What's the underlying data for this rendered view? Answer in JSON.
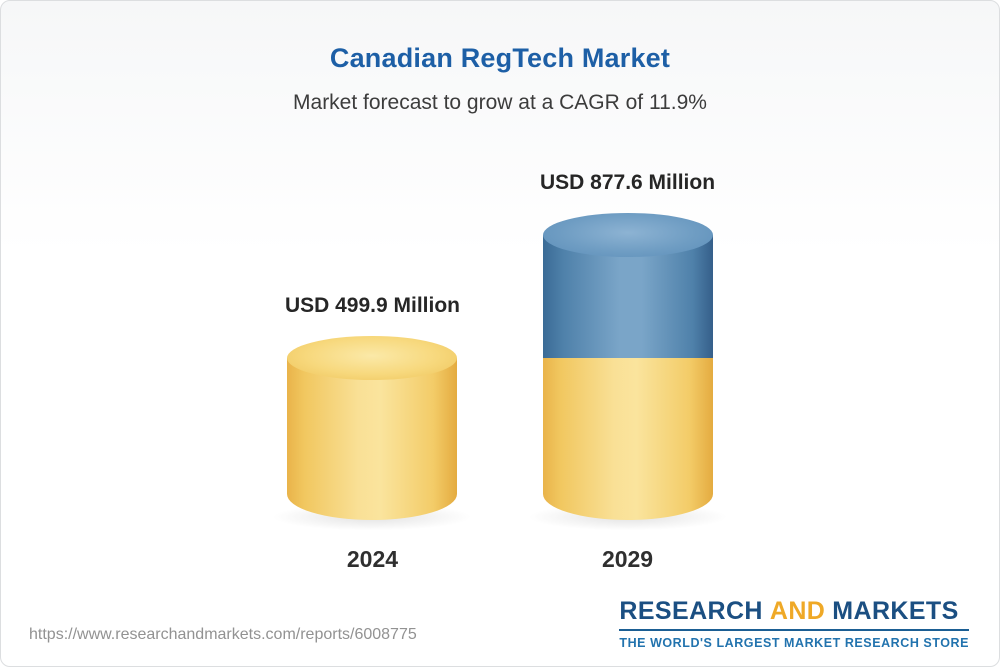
{
  "header": {
    "title": "Canadian RegTech Market",
    "subtitle": "Market forecast to grow at a CAGR of 11.9%"
  },
  "chart_data": {
    "type": "bar",
    "subtype": "3d-cylinder",
    "title": "Canadian RegTech Market",
    "subtitle": "Market forecast to grow at a CAGR of 11.9%",
    "cagr_percent": 11.9,
    "categories": [
      "2024",
      "2029"
    ],
    "values": [
      499.9,
      877.6
    ],
    "unit": "USD Million",
    "value_labels": [
      "USD 499.9 Million",
      "USD 877.6 Million"
    ],
    "legend": "none",
    "grid": "off",
    "colors": {
      "base_segment_yellow": "#F6D47A",
      "growth_segment_blue": "#6A9AC1",
      "title_blue": "#1D5FA6"
    },
    "notes": "2029 cylinder is stacked: yellow base portion equals the 2024 value, blue top segment represents incremental growth up to 877.6"
  },
  "footer": {
    "url": "https://www.researchandmarkets.com/reports/6008775",
    "logo": {
      "word_research": "RESEARCH",
      "word_and": "AND",
      "word_markets": "MARKETS",
      "tagline": "THE WORLD'S LARGEST MARKET RESEARCH STORE"
    }
  }
}
